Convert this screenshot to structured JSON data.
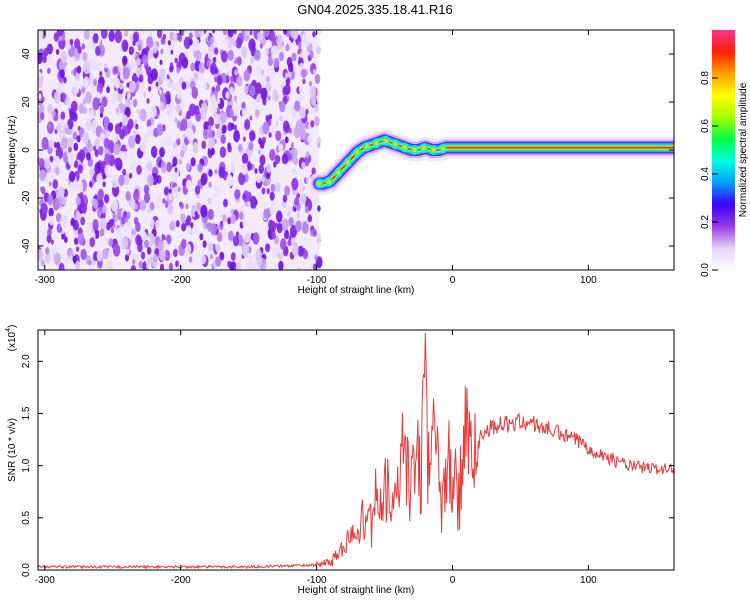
{
  "page": {
    "title": "GN04.2025.335.18.41.R16"
  },
  "chart_data": [
    {
      "type": "heatmap",
      "name": "spectrogram",
      "xlabel": "Height of straight line (km)",
      "ylabel": "Frequency (Hz)",
      "xlim": [
        -305,
        163
      ],
      "ylim": [
        -50,
        50
      ],
      "xticks": [
        -300,
        -200,
        -100,
        0,
        100
      ],
      "xtick_labels": [
        "-300",
        "-200",
        "-100",
        "0",
        "100"
      ],
      "yticks": [
        -40,
        -20,
        0,
        20,
        40
      ],
      "ytick_labels": [
        "-40",
        "-20",
        "0",
        "20",
        "40"
      ],
      "noise_region": [
        -305,
        -98
      ],
      "ridge": {
        "x": [
          -100,
          -95,
          -90,
          -85,
          -80,
          -75,
          -70,
          -65,
          -60,
          -55,
          -50,
          -45,
          -40,
          -35,
          -30,
          -25,
          -20,
          -15,
          -10,
          -5,
          0,
          20,
          40,
          60,
          80,
          100,
          120,
          140,
          163
        ],
        "y": [
          -14,
          -14,
          -13,
          -10,
          -7,
          -4,
          -1,
          1,
          2,
          3,
          4,
          3,
          2,
          1,
          0,
          0,
          1,
          0,
          0,
          1,
          1,
          1,
          1,
          1,
          1,
          1,
          1,
          1,
          1
        ]
      },
      "colorbar": {
        "label": "Normalized spectral amplitude",
        "range": [
          0,
          1
        ],
        "ticks": [
          0.0,
          0.2,
          0.4,
          0.6,
          0.8
        ],
        "tick_labels": [
          "0.0",
          "0.2",
          "0.4",
          "0.6",
          "0.8"
        ],
        "colors": [
          "#ffffff",
          "#e6d2f8",
          "#9a3ae8",
          "#3a00ff",
          "#00a0ff",
          "#00ffe0",
          "#00ff40",
          "#a0ff00",
          "#ffff00",
          "#ffa000",
          "#ff2000",
          "#ff3090"
        ]
      }
    },
    {
      "type": "line",
      "name": "snr",
      "xlabel": "Height of straight line (km)",
      "ylabel": "SNR (10 * v/v)",
      "multiplier_label": "(x10",
      "multiplier_exp": "4",
      "xlim": [
        -305,
        163
      ],
      "ylim": [
        0,
        2.3
      ],
      "xticks": [
        -300,
        -200,
        -100,
        0,
        100
      ],
      "xtick_labels": [
        "-300",
        "-200",
        "-100",
        "0",
        "100"
      ],
      "yticks": [
        0.0,
        0.5,
        1.0,
        1.5,
        2.0
      ],
      "ytick_labels": [
        "0.0",
        "0.5",
        "1.0",
        "1.5",
        "2.0"
      ],
      "color": "#e83c3c",
      "envelope": {
        "x": [
          -305,
          -250,
          -200,
          -150,
          -120,
          -100,
          -90,
          -80,
          -70,
          -60,
          -50,
          -40,
          -30,
          -22,
          -20,
          -18,
          -10,
          0,
          10,
          20,
          30,
          40,
          50,
          60,
          70,
          80,
          90,
          100,
          110,
          120,
          130,
          140,
          150,
          163
        ],
        "y": [
          0.03,
          0.03,
          0.03,
          0.03,
          0.04,
          0.05,
          0.08,
          0.2,
          0.4,
          0.6,
          0.7,
          0.9,
          1.0,
          1.1,
          2.3,
          1.2,
          0.95,
          0.85,
          1.1,
          1.3,
          1.38,
          1.4,
          1.42,
          1.4,
          1.35,
          1.3,
          1.25,
          1.18,
          1.1,
          1.05,
          1.0,
          0.98,
          0.97,
          0.97
        ]
      }
    }
  ]
}
